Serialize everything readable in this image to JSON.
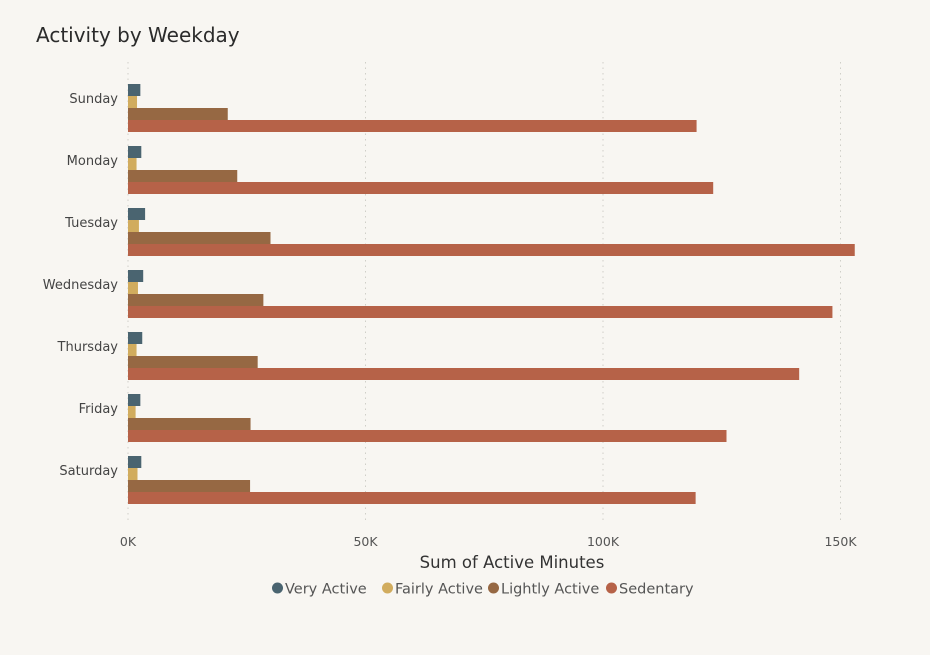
{
  "chart_data": {
    "type": "bar",
    "orientation": "horizontal",
    "title": "Activity by Weekday",
    "xlabel": "Sum of Active Minutes",
    "ylabel": "",
    "xlim": [
      0,
      160000
    ],
    "x_ticks": [
      0,
      50000,
      100000,
      150000
    ],
    "x_tick_labels": [
      "0K",
      "50K",
      "100K",
      "150K"
    ],
    "grid": "vertical dotted",
    "legend_position": "bottom-center",
    "categories": [
      "Sunday",
      "Monday",
      "Tuesday",
      "Wednesday",
      "Thursday",
      "Friday",
      "Saturday"
    ],
    "series": [
      {
        "name": "Very Active",
        "color": "#4a6470",
        "values": [
          2600,
          2800,
          3600,
          3200,
          3000,
          2600,
          2800
        ]
      },
      {
        "name": "Fairly Active",
        "color": "#d1ac5e",
        "values": [
          1900,
          1800,
          2300,
          2100,
          1800,
          1600,
          2000
        ]
      },
      {
        "name": "Lightly Active",
        "color": "#966843",
        "values": [
          21000,
          23000,
          30000,
          28500,
          27300,
          25800,
          25700
        ]
      },
      {
        "name": "Sedentary",
        "color": "#b66248",
        "values": [
          119700,
          123200,
          153000,
          148300,
          141300,
          126000,
          119500
        ]
      }
    ]
  }
}
